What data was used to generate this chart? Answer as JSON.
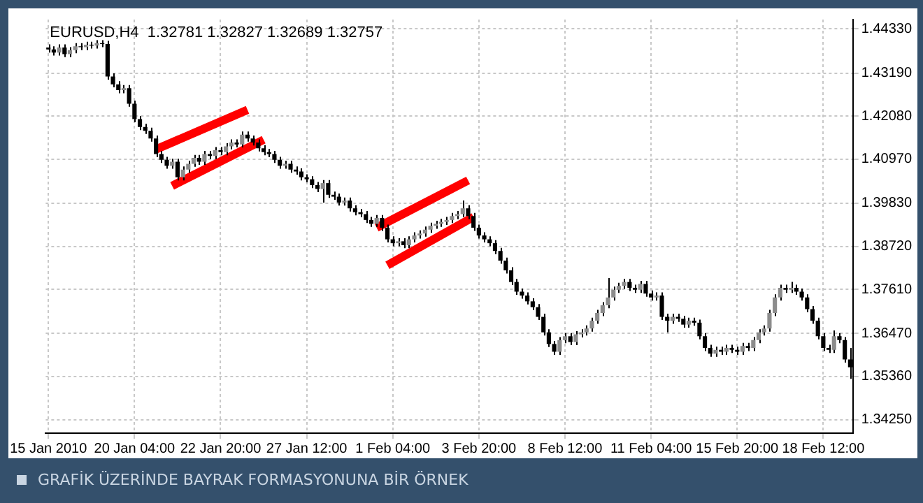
{
  "chart_data": {
    "type": "candlestick",
    "title": "EURUSD,H4  1.32781 1.32827 1.32689 1.32757",
    "annotations": [
      "GRAFİK ÜZERİNDE BAYRAK FORMASYONUNA BİR ÖRNEK"
    ],
    "categories": [
      "15 Jan 2010",
      null,
      null,
      null,
      null,
      null,
      null,
      null,
      null,
      null,
      null,
      null,
      null,
      null,
      null,
      null,
      "20 Jan 04:00",
      null,
      null,
      null,
      null,
      null,
      null,
      null,
      null,
      null,
      null,
      null,
      null,
      null,
      null,
      null,
      "22 Jan 20:00",
      null,
      null,
      null,
      null,
      null,
      null,
      null,
      null,
      null,
      null,
      null,
      null,
      null,
      null,
      null,
      "27 Jan 12:00",
      null,
      null,
      null,
      null,
      null,
      null,
      null,
      null,
      null,
      null,
      null,
      null,
      null,
      null,
      null,
      "1 Feb 04:00",
      null,
      null,
      null,
      null,
      null,
      null,
      null,
      null,
      null,
      null,
      null,
      null,
      null,
      null,
      null,
      "3 Feb 20:00",
      null,
      null,
      null,
      null,
      null,
      null,
      null,
      null,
      null,
      null,
      null,
      null,
      null,
      null,
      null,
      "8 Feb 12:00",
      null,
      null,
      null,
      null,
      null,
      null,
      null,
      null,
      null,
      null,
      null,
      null,
      null,
      null,
      null,
      "11 Feb 04:00",
      null,
      null,
      null,
      null,
      null,
      null,
      null,
      null,
      null,
      null,
      null,
      null,
      null,
      null,
      null,
      "15 Feb 20:00",
      null,
      null,
      null,
      null,
      null,
      null,
      null,
      null,
      null,
      null,
      null,
      null,
      null,
      null,
      null,
      "18 Feb 12:00",
      null,
      null,
      null,
      null,
      null
    ],
    "ohlc": [
      [
        1.4385,
        1.4393,
        1.4372,
        1.438
      ],
      [
        1.438,
        1.4388,
        1.4364,
        1.4372
      ],
      [
        1.4372,
        1.4393,
        1.4364,
        1.4385
      ],
      [
        1.4385,
        1.4393,
        1.436,
        1.4368
      ],
      [
        1.4368,
        1.4386,
        1.436,
        1.4378
      ],
      [
        1.4378,
        1.4396,
        1.437,
        1.4388
      ],
      [
        1.4388,
        1.4396,
        1.4378,
        1.4386
      ],
      [
        1.4386,
        1.44,
        1.4378,
        1.4392
      ],
      [
        1.4392,
        1.44,
        1.4382,
        1.439
      ],
      [
        1.439,
        1.4404,
        1.4382,
        1.4396
      ],
      [
        1.4396,
        1.4404,
        1.4386,
        1.4394
      ],
      [
        1.4394,
        1.4402,
        1.4302,
        1.431
      ],
      [
        1.431,
        1.4318,
        1.4282,
        1.429
      ],
      [
        1.429,
        1.4298,
        1.4267,
        1.4275
      ],
      [
        1.4275,
        1.4288,
        1.4267,
        1.428
      ],
      [
        1.428,
        1.4288,
        1.4232,
        1.424
      ],
      [
        1.424,
        1.4248,
        1.4192,
        1.42
      ],
      [
        1.42,
        1.4208,
        1.4172,
        1.418
      ],
      [
        1.418,
        1.4188,
        1.4162,
        1.417
      ],
      [
        1.417,
        1.4178,
        1.4142,
        1.415
      ],
      [
        1.415,
        1.4158,
        1.4102,
        1.411
      ],
      [
        1.411,
        1.4118,
        1.4087,
        1.4095
      ],
      [
        1.4095,
        1.4103,
        1.4072,
        1.408
      ],
      [
        1.408,
        1.4098,
        1.4072,
        1.409
      ],
      [
        1.409,
        1.4098,
        1.4042,
        1.405
      ],
      [
        1.405,
        1.4078,
        1.4042,
        1.407
      ],
      [
        1.407,
        1.4093,
        1.4062,
        1.4085
      ],
      [
        1.4085,
        1.4108,
        1.4077,
        1.41
      ],
      [
        1.41,
        1.4108,
        1.4082,
        1.409
      ],
      [
        1.409,
        1.4118,
        1.4082,
        1.411
      ],
      [
        1.411,
        1.4118,
        1.4097,
        1.4105
      ],
      [
        1.4105,
        1.4128,
        1.4097,
        1.412
      ],
      [
        1.412,
        1.4128,
        1.4107,
        1.4115
      ],
      [
        1.4115,
        1.4138,
        1.4107,
        1.413
      ],
      [
        1.413,
        1.4148,
        1.4122,
        1.414
      ],
      [
        1.414,
        1.4148,
        1.4127,
        1.4135
      ],
      [
        1.4135,
        1.4168,
        1.4127,
        1.416
      ],
      [
        1.416,
        1.4168,
        1.4142,
        1.415
      ],
      [
        1.415,
        1.4158,
        1.4132,
        1.414
      ],
      [
        1.414,
        1.4148,
        1.4117,
        1.4125
      ],
      [
        1.4125,
        1.4133,
        1.4107,
        1.4115
      ],
      [
        1.4115,
        1.4123,
        1.4102,
        1.411
      ],
      [
        1.411,
        1.4118,
        1.4087,
        1.4095
      ],
      [
        1.4095,
        1.4103,
        1.4072,
        1.408
      ],
      [
        1.408,
        1.4093,
        1.4072,
        1.4085
      ],
      [
        1.4085,
        1.4093,
        1.4062,
        1.407
      ],
      [
        1.407,
        1.4078,
        1.4057,
        1.4065
      ],
      [
        1.4065,
        1.4073,
        1.4042,
        1.405
      ],
      [
        1.405,
        1.4058,
        1.4037,
        1.4045
      ],
      [
        1.4045,
        1.4053,
        1.4022,
        1.403
      ],
      [
        1.403,
        1.4038,
        1.4012,
        1.402
      ],
      [
        1.402,
        1.4043,
        1.3985,
        1.4035
      ],
      [
        1.4035,
        1.4043,
        1.3997,
        1.4005
      ],
      [
        1.4005,
        1.4013,
        1.3992,
        1.4
      ],
      [
        1.4,
        1.4008,
        1.3977,
        1.3985
      ],
      [
        1.3985,
        1.3998,
        1.3977,
        1.399
      ],
      [
        1.399,
        1.3998,
        1.3962,
        1.397
      ],
      [
        1.397,
        1.3978,
        1.3952,
        1.396
      ],
      [
        1.396,
        1.3968,
        1.3947,
        1.3955
      ],
      [
        1.3955,
        1.3963,
        1.3932,
        1.394
      ],
      [
        1.394,
        1.3948,
        1.3922,
        1.393
      ],
      [
        1.393,
        1.3953,
        1.3922,
        1.3945
      ],
      [
        1.3945,
        1.3953,
        1.3912,
        1.392
      ],
      [
        1.392,
        1.3928,
        1.3882,
        1.389
      ],
      [
        1.389,
        1.3898,
        1.3872,
        1.388
      ],
      [
        1.388,
        1.3893,
        1.3872,
        1.3885
      ],
      [
        1.3885,
        1.3893,
        1.3867,
        1.3875
      ],
      [
        1.3875,
        1.3898,
        1.3867,
        1.389
      ],
      [
        1.389,
        1.3908,
        1.3882,
        1.39
      ],
      [
        1.39,
        1.3913,
        1.3892,
        1.3905
      ],
      [
        1.3905,
        1.3923,
        1.3897,
        1.3915
      ],
      [
        1.3915,
        1.3933,
        1.3907,
        1.3925
      ],
      [
        1.3925,
        1.3938,
        1.3917,
        1.393
      ],
      [
        1.393,
        1.3943,
        1.3922,
        1.3935
      ],
      [
        1.3935,
        1.3948,
        1.3927,
        1.394
      ],
      [
        1.394,
        1.3958,
        1.3932,
        1.395
      ],
      [
        1.395,
        1.3963,
        1.3942,
        1.3955
      ],
      [
        1.3955,
        1.399,
        1.3947,
        1.397
      ],
      [
        1.397,
        1.3978,
        1.3942,
        1.395
      ],
      [
        1.395,
        1.3958,
        1.3912,
        1.392
      ],
      [
        1.392,
        1.3928,
        1.3892,
        1.39
      ],
      [
        1.39,
        1.3908,
        1.3882,
        1.389
      ],
      [
        1.389,
        1.3898,
        1.3872,
        1.388
      ],
      [
        1.388,
        1.3888,
        1.3852,
        1.386
      ],
      [
        1.386,
        1.3868,
        1.3827,
        1.3835
      ],
      [
        1.3835,
        1.3843,
        1.3802,
        1.381
      ],
      [
        1.381,
        1.3818,
        1.3772,
        1.378
      ],
      [
        1.378,
        1.3788,
        1.3747,
        1.3755
      ],
      [
        1.3755,
        1.3763,
        1.3737,
        1.3745
      ],
      [
        1.3745,
        1.3753,
        1.3722,
        1.373
      ],
      [
        1.373,
        1.3738,
        1.3707,
        1.3715
      ],
      [
        1.3715,
        1.3723,
        1.3682,
        1.369
      ],
      [
        1.369,
        1.3698,
        1.3642,
        1.365
      ],
      [
        1.365,
        1.3658,
        1.3612,
        1.362
      ],
      [
        1.362,
        1.3628,
        1.3592,
        1.36
      ],
      [
        1.36,
        1.3638,
        1.3592,
        1.363
      ],
      [
        1.363,
        1.3648,
        1.3622,
        1.364
      ],
      [
        1.364,
        1.3648,
        1.3617,
        1.3625
      ],
      [
        1.3625,
        1.3653,
        1.3617,
        1.3645
      ],
      [
        1.3645,
        1.3658,
        1.3637,
        1.365
      ],
      [
        1.365,
        1.3668,
        1.3642,
        1.366
      ],
      [
        1.366,
        1.3688,
        1.3652,
        1.368
      ],
      [
        1.368,
        1.3708,
        1.3672,
        1.37
      ],
      [
        1.37,
        1.3728,
        1.3692,
        1.372
      ],
      [
        1.372,
        1.379,
        1.3712,
        1.374
      ],
      [
        1.374,
        1.3768,
        1.3732,
        1.376
      ],
      [
        1.376,
        1.3778,
        1.3752,
        1.377
      ],
      [
        1.377,
        1.3788,
        1.3762,
        1.378
      ],
      [
        1.378,
        1.3788,
        1.3757,
        1.3765
      ],
      [
        1.3765,
        1.3773,
        1.3752,
        1.376
      ],
      [
        1.376,
        1.3783,
        1.3752,
        1.3775
      ],
      [
        1.3775,
        1.3783,
        1.3742,
        1.375
      ],
      [
        1.375,
        1.3758,
        1.3732,
        1.374
      ],
      [
        1.374,
        1.3753,
        1.3732,
        1.3745
      ],
      [
        1.3745,
        1.3753,
        1.3682,
        1.369
      ],
      [
        1.369,
        1.3698,
        1.365,
        1.368
      ],
      [
        1.368,
        1.3698,
        1.3672,
        1.369
      ],
      [
        1.369,
        1.3698,
        1.3677,
        1.3685
      ],
      [
        1.3685,
        1.3693,
        1.3662,
        1.367
      ],
      [
        1.367,
        1.3688,
        1.3662,
        1.368
      ],
      [
        1.368,
        1.3688,
        1.3667,
        1.3675
      ],
      [
        1.3675,
        1.3683,
        1.3632,
        1.364
      ],
      [
        1.364,
        1.3648,
        1.3602,
        1.361
      ],
      [
        1.361,
        1.3618,
        1.3587,
        1.3595
      ],
      [
        1.3595,
        1.3613,
        1.3587,
        1.3605
      ],
      [
        1.3605,
        1.3613,
        1.3592,
        1.36
      ],
      [
        1.36,
        1.3618,
        1.3592,
        1.361
      ],
      [
        1.361,
        1.3618,
        1.3597,
        1.3605
      ],
      [
        1.3605,
        1.3613,
        1.3592,
        1.36
      ],
      [
        1.36,
        1.3623,
        1.3592,
        1.3615
      ],
      [
        1.3615,
        1.3623,
        1.3602,
        1.361
      ],
      [
        1.361,
        1.3638,
        1.3602,
        1.363
      ],
      [
        1.363,
        1.3658,
        1.3622,
        1.365
      ],
      [
        1.365,
        1.3668,
        1.3642,
        1.366
      ],
      [
        1.366,
        1.3708,
        1.3652,
        1.37
      ],
      [
        1.37,
        1.3748,
        1.3692,
        1.374
      ],
      [
        1.374,
        1.3773,
        1.3732,
        1.3765
      ],
      [
        1.3765,
        1.3773,
        1.3752,
        1.376
      ],
      [
        1.376,
        1.378,
        1.3752,
        1.3765
      ],
      [
        1.3765,
        1.3773,
        1.3747,
        1.3755
      ],
      [
        1.3755,
        1.3763,
        1.3732,
        1.374
      ],
      [
        1.374,
        1.3748,
        1.3702,
        1.371
      ],
      [
        1.371,
        1.3718,
        1.3672,
        1.368
      ],
      [
        1.368,
        1.3688,
        1.3632,
        1.364
      ],
      [
        1.364,
        1.3648,
        1.3602,
        1.361
      ],
      [
        1.361,
        1.3618,
        1.3597,
        1.3605
      ],
      [
        1.3605,
        1.3655,
        1.3597,
        1.364
      ],
      [
        1.364,
        1.3648,
        1.3622,
        1.363
      ],
      [
        1.363,
        1.3638,
        1.3572,
        1.358
      ],
      [
        1.358,
        1.361,
        1.353,
        1.356
      ]
    ],
    "series": [
      {
        "type": "line",
        "color": "#ff0000",
        "values": [
          null,
          null,
          null,
          null,
          null,
          null,
          null,
          null,
          null,
          null,
          null,
          null,
          null,
          null,
          null,
          null,
          null,
          null,
          null,
          null,
          1.4122,
          null,
          null,
          null,
          null,
          null,
          null,
          null,
          null,
          null,
          null,
          null,
          null,
          null,
          null,
          null,
          null,
          1.4224,
          null,
          null,
          null,
          null,
          null,
          null,
          null,
          null,
          null,
          null,
          null,
          null,
          null,
          null,
          null,
          null,
          null,
          null,
          null,
          null,
          null,
          null,
          null,
          null,
          null,
          null,
          null,
          null,
          null,
          null,
          null,
          null,
          null,
          null,
          null,
          null,
          null,
          null,
          null,
          null,
          null,
          null,
          null,
          null,
          null,
          null,
          null,
          null,
          null,
          null,
          null,
          null,
          null,
          null,
          null,
          null,
          null,
          null,
          null,
          null,
          null,
          null,
          null,
          null,
          null,
          null,
          null,
          null,
          null,
          null,
          null,
          null,
          null,
          null,
          null,
          null,
          null,
          null,
          null,
          null,
          null,
          null,
          null,
          null,
          null,
          null,
          null,
          null,
          null,
          null,
          null,
          null,
          null,
          null,
          null,
          null,
          null,
          null,
          null,
          null,
          null,
          null,
          null,
          null,
          null,
          null,
          null,
          null,
          null,
          null,
          null,
          null
        ]
      },
      {
        "type": "line",
        "color": "#ff0000",
        "values": [
          null,
          null,
          null,
          null,
          null,
          null,
          null,
          null,
          null,
          null,
          null,
          null,
          null,
          null,
          null,
          null,
          null,
          null,
          null,
          null,
          null,
          null,
          null,
          1.4028,
          null,
          null,
          null,
          null,
          null,
          null,
          null,
          null,
          null,
          null,
          null,
          null,
          null,
          null,
          null,
          null,
          1.4147,
          null,
          null,
          null,
          null,
          null,
          null,
          null,
          null,
          null,
          null,
          null,
          null,
          null,
          null,
          null,
          null,
          null,
          null,
          null,
          null,
          null,
          null,
          null,
          null,
          null,
          null,
          null,
          null,
          null,
          null,
          null,
          null,
          null,
          null,
          null,
          null,
          null,
          null,
          null,
          null,
          null,
          null,
          null,
          null,
          null,
          null,
          null,
          null,
          null,
          null,
          null,
          null,
          null,
          null,
          null,
          null,
          null,
          null,
          null,
          null,
          null,
          null,
          null,
          null,
          null,
          null,
          null,
          null,
          null,
          null,
          null,
          null,
          null,
          null,
          null,
          null,
          null,
          null,
          null,
          null,
          null,
          null,
          null,
          null,
          null,
          null,
          null,
          null,
          null,
          null,
          null,
          null,
          null,
          null,
          null,
          null,
          null,
          null,
          null,
          null,
          null,
          null,
          null,
          null,
          null,
          null,
          null,
          null,
          null
        ]
      },
      {
        "type": "line",
        "color": "#ff0000",
        "values": [
          null,
          null,
          null,
          null,
          null,
          null,
          null,
          null,
          null,
          null,
          null,
          null,
          null,
          null,
          null,
          null,
          null,
          null,
          null,
          null,
          null,
          null,
          null,
          null,
          null,
          null,
          null,
          null,
          null,
          null,
          null,
          null,
          null,
          null,
          null,
          null,
          null,
          null,
          null,
          null,
          null,
          null,
          null,
          null,
          null,
          null,
          null,
          null,
          null,
          null,
          null,
          null,
          null,
          null,
          null,
          null,
          null,
          null,
          null,
          null,
          null,
          1.392,
          null,
          null,
          null,
          null,
          null,
          null,
          null,
          null,
          null,
          null,
          null,
          null,
          null,
          null,
          null,
          null,
          1.4042,
          null,
          null,
          null,
          null,
          null,
          null,
          null,
          null,
          null,
          null,
          null,
          null,
          null,
          null,
          null,
          null,
          null,
          null,
          null,
          null,
          null,
          null,
          null,
          null,
          null,
          null,
          null,
          null,
          null,
          null,
          null,
          null,
          null,
          null,
          null,
          null,
          null,
          null,
          null,
          null,
          null,
          null,
          null,
          null,
          null,
          null,
          null,
          null,
          null,
          null,
          null,
          null,
          null,
          null,
          null,
          null,
          null,
          null,
          null,
          null,
          null,
          null,
          null,
          null,
          null,
          null,
          null,
          null,
          null,
          null,
          null
        ]
      },
      {
        "type": "line",
        "color": "#ff0000",
        "values": [
          null,
          null,
          null,
          null,
          null,
          null,
          null,
          null,
          null,
          null,
          null,
          null,
          null,
          null,
          null,
          null,
          null,
          null,
          null,
          null,
          null,
          null,
          null,
          null,
          null,
          null,
          null,
          null,
          null,
          null,
          null,
          null,
          null,
          null,
          null,
          null,
          null,
          null,
          null,
          null,
          null,
          null,
          null,
          null,
          null,
          null,
          null,
          null,
          null,
          null,
          null,
          null,
          null,
          null,
          null,
          null,
          null,
          null,
          null,
          null,
          null,
          null,
          null,
          1.3823,
          null,
          null,
          null,
          null,
          null,
          null,
          null,
          null,
          null,
          null,
          null,
          null,
          null,
          null,
          null,
          1.3948,
          null,
          null,
          null,
          null,
          null,
          null,
          null,
          null,
          null,
          null,
          null,
          null,
          null,
          null,
          null,
          null,
          null,
          null,
          null,
          null,
          null,
          null,
          null,
          null,
          null,
          null,
          null,
          null,
          null,
          null,
          null,
          null,
          null,
          null,
          null,
          null,
          null,
          null,
          null,
          null,
          null,
          null,
          null,
          null,
          null,
          null,
          null,
          null,
          null,
          null,
          null,
          null,
          null,
          null,
          null,
          null,
          null,
          null,
          null,
          null,
          null,
          null,
          null,
          null,
          null,
          null,
          null,
          null,
          null,
          null
        ]
      }
    ],
    "ylim": [
      1.339,
      1.4457
    ],
    "yticks": [
      {
        "value": 1.3425,
        "label": "1.34250"
      },
      {
        "value": 1.3536,
        "label": "1.35360"
      },
      {
        "value": 1.3647,
        "label": "1.36470"
      },
      {
        "value": 1.3761,
        "label": "1.37610"
      },
      {
        "value": 1.3872,
        "label": "1.38720"
      },
      {
        "value": 1.3983,
        "label": "1.39830"
      },
      {
        "value": 1.4097,
        "label": "1.40970"
      },
      {
        "value": 1.4208,
        "label": "1.42080"
      },
      {
        "value": 1.4319,
        "label": "1.43190"
      },
      {
        "value": 1.4433,
        "label": "1.44330"
      }
    ],
    "grid": true,
    "legend": false
  }
}
